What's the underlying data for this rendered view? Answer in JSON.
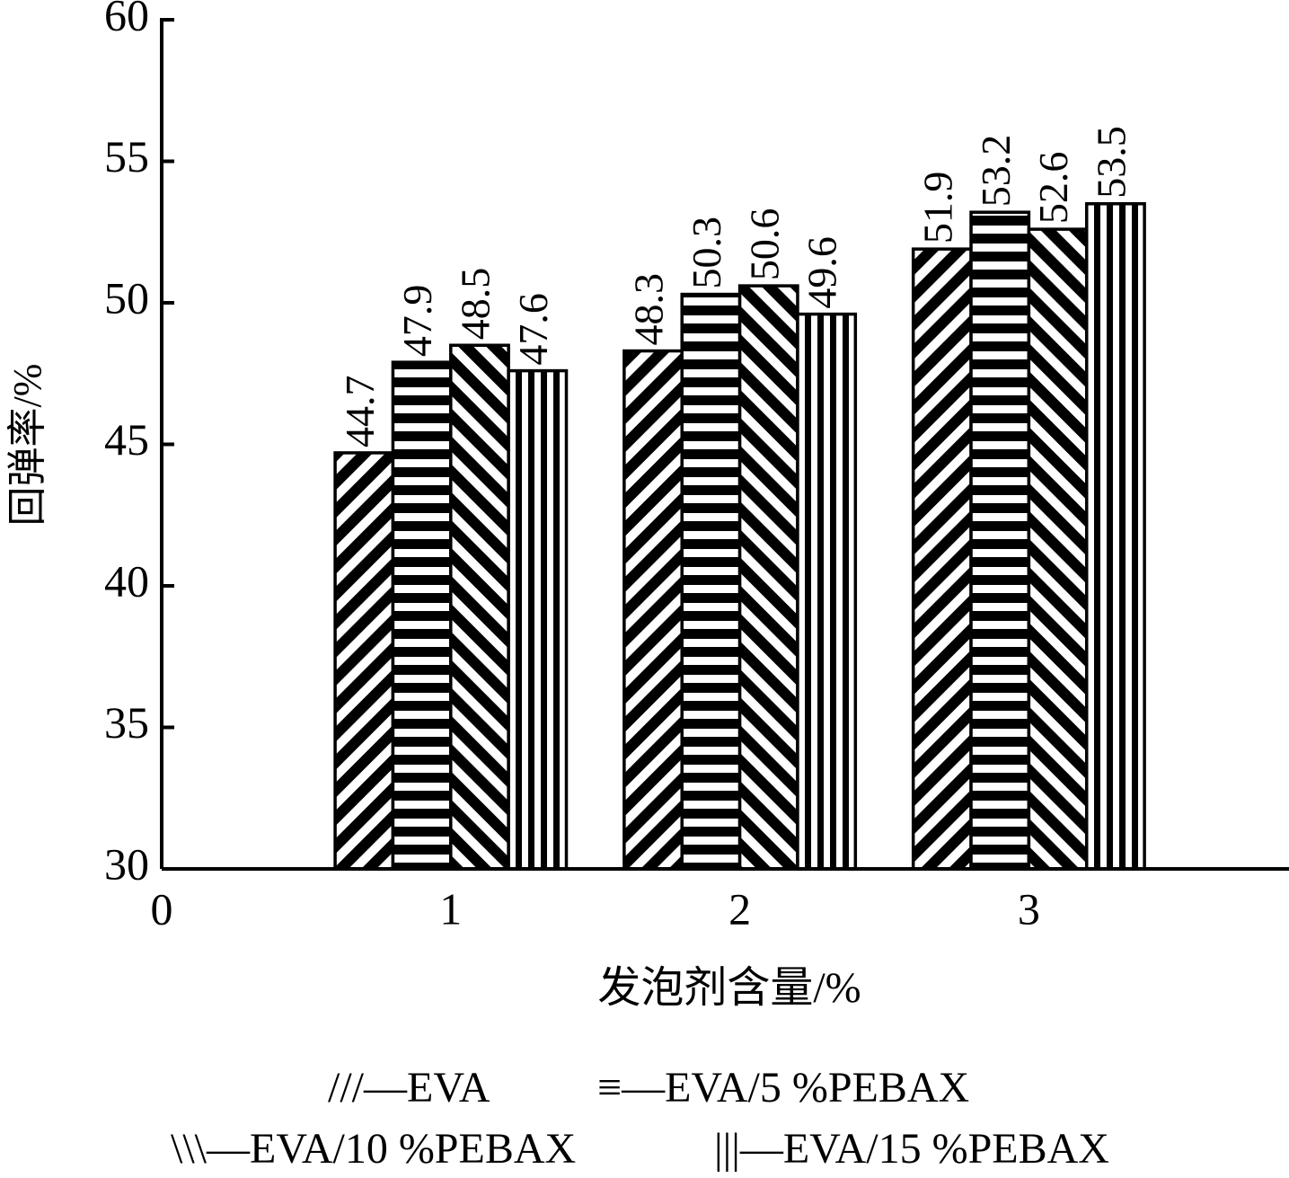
{
  "chart_data": {
    "type": "bar",
    "x_label": "发泡剂含量/%",
    "y_label": "回弹率/%",
    "x": [
      1,
      2,
      3
    ],
    "xlim": [
      0,
      3.9
    ],
    "xticks": [
      0,
      1,
      2,
      3
    ],
    "ylim": [
      30,
      60
    ],
    "yticks": [
      30,
      35,
      40,
      45,
      50,
      55,
      60
    ],
    "legend_separator": "—",
    "series": [
      {
        "name": "EVA",
        "symbol": "///",
        "pattern": "diagonal-up",
        "color": "#000000",
        "values": [
          44.7,
          48.3,
          51.9
        ]
      },
      {
        "name": "EVA/5 %PEBAX",
        "symbol": "≡",
        "pattern": "horizontal",
        "color": "#000000",
        "values": [
          47.9,
          50.3,
          53.2
        ]
      },
      {
        "name": "EVA/10 %PEBAX",
        "symbol": "\\\\\\",
        "pattern": "diagonal-down",
        "color": "#000000",
        "values": [
          48.5,
          50.6,
          52.6
        ]
      },
      {
        "name": "EVA/15 %PEBAX",
        "symbol": "|||",
        "pattern": "vertical",
        "color": "#000000",
        "values": [
          47.6,
          49.6,
          53.5
        ]
      }
    ]
  }
}
